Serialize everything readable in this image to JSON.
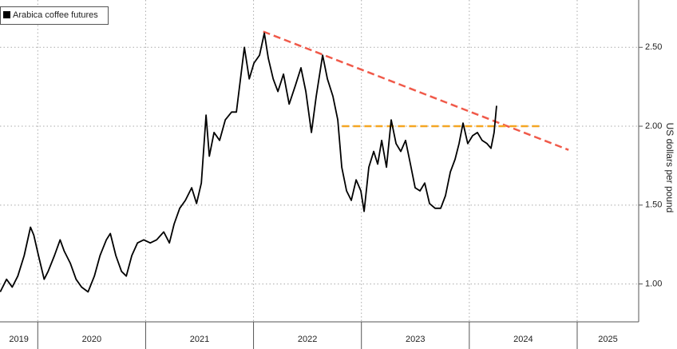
{
  "chart_data": {
    "type": "line",
    "legend": "Arabica coffee futures",
    "y_label": "US dollars per pound",
    "x": [
      2019.652,
      2019.711,
      2019.763,
      2019.815,
      2019.874,
      2019.933,
      2019.963,
      2020.007,
      2020.059,
      2020.096,
      2020.155,
      2020.207,
      2020.244,
      2020.303,
      2020.355,
      2020.406,
      2020.466,
      2020.525,
      2020.577,
      2020.636,
      2020.673,
      2020.724,
      2020.776,
      2020.821,
      2020.872,
      2020.924,
      2020.983,
      2021.043,
      2021.102,
      2021.168,
      2021.22,
      2021.264,
      2021.316,
      2021.368,
      2021.427,
      2021.472,
      2021.516,
      2021.56,
      2021.59,
      2021.634,
      2021.686,
      2021.738,
      2021.797,
      2021.841,
      2021.886,
      2021.915,
      2021.96,
      2022.004,
      2022.056,
      2022.1,
      2022.137,
      2022.182,
      2022.226,
      2022.278,
      2022.33,
      2022.389,
      2022.44,
      2022.485,
      2022.537,
      2022.581,
      2022.64,
      2022.685,
      2022.736,
      2022.781,
      2022.818,
      2022.862,
      2022.906,
      2022.951,
      2022.995,
      2023.025,
      2023.069,
      2023.114,
      2023.151,
      2023.188,
      2023.232,
      2023.276,
      2023.321,
      2023.365,
      2023.409,
      2023.454,
      2023.498,
      2023.543,
      2023.587,
      2023.631,
      2023.683,
      2023.735,
      2023.779,
      2023.824,
      2023.868,
      2023.905,
      2023.942,
      2023.986,
      2024.031,
      2024.075,
      2024.119,
      2024.164,
      2024.201,
      2024.23,
      2024.253
    ],
    "series": [
      {
        "name": "Arabica coffee futures",
        "color": "#000000",
        "values": [
          0.95,
          1.03,
          0.98,
          1.05,
          1.18,
          1.36,
          1.31,
          1.18,
          1.03,
          1.08,
          1.18,
          1.28,
          1.21,
          1.13,
          1.03,
          0.98,
          0.95,
          1.05,
          1.18,
          1.28,
          1.32,
          1.18,
          1.08,
          1.05,
          1.18,
          1.26,
          1.28,
          1.26,
          1.28,
          1.33,
          1.26,
          1.38,
          1.48,
          1.53,
          1.61,
          1.51,
          1.64,
          2.07,
          1.81,
          1.96,
          1.91,
          2.04,
          2.09,
          2.09,
          2.34,
          2.5,
          2.3,
          2.4,
          2.45,
          2.59,
          2.43,
          2.3,
          2.22,
          2.33,
          2.14,
          2.26,
          2.37,
          2.22,
          1.96,
          2.19,
          2.45,
          2.3,
          2.19,
          2.04,
          1.74,
          1.59,
          1.53,
          1.66,
          1.59,
          1.46,
          1.74,
          1.84,
          1.76,
          1.91,
          1.74,
          2.04,
          1.89,
          1.84,
          1.91,
          1.76,
          1.61,
          1.59,
          1.64,
          1.51,
          1.48,
          1.48,
          1.56,
          1.71,
          1.79,
          1.89,
          2.02,
          1.89,
          1.94,
          1.96,
          1.91,
          1.89,
          1.86,
          1.96,
          2.13
        ]
      }
    ],
    "trendlines": [
      {
        "color": "#f05a4a",
        "x": [
          2022.09,
          2024.92
        ],
        "values": [
          2.6,
          1.85
        ]
      },
      {
        "color": "#f5a623",
        "x": [
          2022.82,
          2024.68
        ],
        "values": [
          2.0,
          2.0
        ]
      }
    ],
    "xlim": [
      2019.65,
      2025.57
    ],
    "xticks": [
      2019,
      2020,
      2021,
      2022,
      2023,
      2024,
      2025
    ],
    "ylim": [
      0.76,
      2.8
    ],
    "yticks": [
      {
        "value": 1,
        "label": "1.00"
      },
      {
        "value": 1.5,
        "label": "1.50"
      },
      {
        "value": 2,
        "label": "2.00"
      },
      {
        "value": 2.5,
        "label": "2.50"
      }
    ],
    "grid": true
  }
}
